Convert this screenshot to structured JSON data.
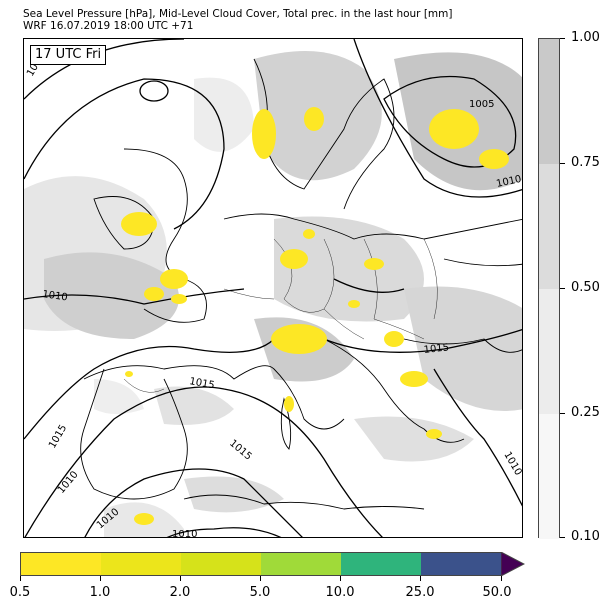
{
  "title": {
    "line1": "Sea Level Pressure [hPa], Mid-Level Cloud Cover, Total prec. in the last hour [mm]",
    "line2": "WRF 16.07.2019 18:00 UTC +71"
  },
  "map": {
    "time_label": "17 UTC Fri",
    "isobar_labels": [
      "1005",
      "1010",
      "1010",
      "1010",
      "1010",
      "1010",
      "1010",
      "1015",
      "1015",
      "1015",
      "1015",
      "10"
    ]
  },
  "cloud_colorbar": {
    "ticks": [
      "1.00",
      "0.75",
      "0.50",
      "0.25",
      "0.10"
    ],
    "colors": [
      "#c9c9c9",
      "#dcdcdc",
      "#ececec",
      "#f7f7f7"
    ]
  },
  "precip_colorbar": {
    "ticks": [
      "0.5",
      "1.0",
      "2.0",
      "5.0",
      "10.0",
      "25.0",
      "50.0"
    ],
    "colors": [
      "#fde725",
      "#ece51b",
      "#d6e21a",
      "#a0da39",
      "#2fb47c",
      "#3b528b",
      "#440154"
    ]
  }
}
